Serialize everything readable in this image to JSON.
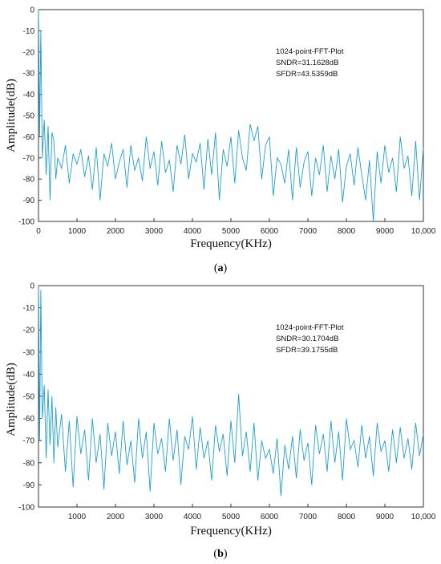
{
  "chart_data": [
    {
      "type": "line",
      "caption_letter": "a",
      "xlabel": "Frequency(KHz)",
      "ylabel": "Amplitude(dB)",
      "xlim": [
        0,
        10000
      ],
      "ylim": [
        -100,
        0
      ],
      "xticks": [
        0,
        1000,
        2000,
        3000,
        4000,
        5000,
        6000,
        7000,
        8000,
        9000,
        10000
      ],
      "xtick_labels": [
        "0",
        "1000",
        "2000",
        "3000",
        "4000",
        "5000",
        "6000",
        "7000",
        "8000",
        "9000",
        "10,000"
      ],
      "yticks": [
        0,
        -10,
        -20,
        -30,
        -40,
        -50,
        -60,
        -70,
        -80,
        -90,
        -100
      ],
      "ytick_labels": [
        "0",
        "-10",
        "-20",
        "-30",
        "-40",
        "-50",
        "-60",
        "-70",
        "-80",
        "-90",
        "-100"
      ],
      "grid": false,
      "line_color": "#1f9fd3",
      "annotations": [
        "1024-point-FFT-Plot",
        "SNDR=31.1628dB",
        "SFDR=43.5359dB"
      ],
      "series": [
        {
          "x": [
            0,
            30,
            60,
            100,
            150,
            200,
            250,
            300,
            350,
            400,
            450,
            500,
            600,
            700,
            800,
            900,
            1000,
            1100,
            1200,
            1300,
            1400,
            1500,
            1600,
            1700,
            1800,
            1900,
            2000,
            2100,
            2200,
            2300,
            2400,
            2500,
            2600,
            2700,
            2800,
            2900,
            3000,
            3100,
            3200,
            3300,
            3400,
            3500,
            3600,
            3700,
            3800,
            3900,
            4000,
            4100,
            4200,
            4300,
            4400,
            4500,
            4600,
            4700,
            4800,
            4900,
            5000,
            5100,
            5200,
            5300,
            5400,
            5500,
            5600,
            5700,
            5800,
            5900,
            6000,
            6100,
            6200,
            6300,
            6400,
            6500,
            6600,
            6700,
            6800,
            6900,
            7000,
            7100,
            7200,
            7300,
            7400,
            7500,
            7600,
            7700,
            7800,
            7900,
            8000,
            8100,
            8200,
            8300,
            8400,
            8500,
            8600,
            8700,
            8800,
            8900,
            9000,
            9100,
            9200,
            9300,
            9400,
            9500,
            9600,
            9700,
            9800,
            9900,
            10000
          ],
          "y": [
            0,
            -60,
            -10,
            -70,
            -52,
            -78,
            -55,
            -90,
            -58,
            -62,
            -80,
            -70,
            -75,
            -64,
            -82,
            -68,
            -73,
            -66,
            -79,
            -69,
            -85,
            -65,
            -90,
            -68,
            -74,
            -63,
            -80,
            -72,
            -66,
            -84,
            -64,
            -76,
            -70,
            -81,
            -60,
            -75,
            -67,
            -83,
            -62,
            -77,
            -71,
            -86,
            -64,
            -73,
            -59,
            -80,
            -68,
            -72,
            -63,
            -85,
            -61,
            -78,
            -58,
            -90,
            -66,
            -74,
            -60,
            -82,
            -57,
            -70,
            -76,
            -54,
            -62,
            -55,
            -80,
            -64,
            -60,
            -88,
            -70,
            -73,
            -82,
            -66,
            -90,
            -65,
            -84,
            -72,
            -67,
            -88,
            -70,
            -78,
            -64,
            -86,
            -69,
            -80,
            -66,
            -91,
            -74,
            -68,
            -83,
            -65,
            -78,
            -90,
            -71,
            -100,
            -67,
            -82,
            -64,
            -77,
            -70,
            -86,
            -60,
            -75,
            -69,
            -88,
            -62,
            -90,
            -65
          ]
        }
      ]
    },
    {
      "type": "line",
      "caption_letter": "b",
      "xlabel": "Frequency(KHz)",
      "ylabel": "Amplitude(dB)",
      "xlim": [
        0,
        10000
      ],
      "ylim": [
        -100,
        0
      ],
      "xticks": [
        1000,
        2000,
        3000,
        4000,
        5000,
        6000,
        7000,
        8000,
        9000,
        10000
      ],
      "xtick_labels": [
        "1000",
        "2000",
        "3000",
        "4000",
        "5000",
        "6000",
        "7000",
        "8000",
        "9000",
        "10,000"
      ],
      "yticks": [
        0,
        -10,
        -20,
        -30,
        -40,
        -50,
        -60,
        -70,
        -80,
        -90,
        -100
      ],
      "ytick_labels": [
        "0",
        "-10",
        "-20",
        "-30",
        "-40",
        "-50",
        "-60",
        "-70",
        "-80",
        "-90",
        "-100"
      ],
      "grid": false,
      "line_color": "#1f9fd3",
      "annotations": [
        "1024-point-FFT-Plot",
        "SNDR=30.1704dB",
        "SFDR=39.1755dB"
      ],
      "series": [
        {
          "x": [
            0,
            30,
            60,
            100,
            150,
            200,
            250,
            300,
            350,
            400,
            450,
            500,
            600,
            700,
            800,
            900,
            1000,
            1100,
            1200,
            1300,
            1400,
            1500,
            1600,
            1700,
            1800,
            1900,
            2000,
            2100,
            2200,
            2300,
            2400,
            2500,
            2600,
            2700,
            2800,
            2900,
            3000,
            3100,
            3200,
            3300,
            3400,
            3500,
            3600,
            3700,
            3800,
            3900,
            4000,
            4100,
            4200,
            4300,
            4400,
            4500,
            4600,
            4700,
            4800,
            4900,
            5000,
            5100,
            5200,
            5300,
            5400,
            5500,
            5600,
            5700,
            5800,
            5900,
            6000,
            6100,
            6200,
            6300,
            6400,
            6500,
            6600,
            6700,
            6800,
            6900,
            7000,
            7100,
            7200,
            7300,
            7400,
            7500,
            7600,
            7700,
            7800,
            7900,
            8000,
            8100,
            8200,
            8300,
            8400,
            8500,
            8600,
            8700,
            8800,
            8900,
            9000,
            9100,
            9200,
            9300,
            9400,
            9500,
            9600,
            9700,
            9800,
            9900,
            10000
          ],
          "y": [
            0,
            -70,
            -2,
            -60,
            -45,
            -78,
            -47,
            -72,
            -50,
            -80,
            -55,
            -73,
            -58,
            -84,
            -61,
            -91,
            -59,
            -76,
            -65,
            -88,
            -60,
            -80,
            -67,
            -92,
            -62,
            -77,
            -66,
            -85,
            -61,
            -81,
            -70,
            -89,
            -60,
            -78,
            -66,
            -93,
            -62,
            -76,
            -69,
            -84,
            -60,
            -79,
            -65,
            -90,
            -68,
            -74,
            -59,
            -83,
            -64,
            -78,
            -70,
            -88,
            -63,
            -75,
            -67,
            -86,
            -61,
            -80,
            -49,
            -77,
            -66,
            -84,
            -62,
            -88,
            -70,
            -78,
            -74,
            -85,
            -69,
            -95,
            -72,
            -83,
            -68,
            -87,
            -65,
            -79,
            -71,
            -90,
            -63,
            -76,
            -67,
            -84,
            -61,
            -80,
            -66,
            -88,
            -60,
            -74,
            -70,
            -82,
            -63,
            -78,
            -68,
            -86,
            -62,
            -75,
            -70,
            -84,
            -65,
            -80,
            -64,
            -78,
            -69,
            -83,
            -62,
            -77,
            -67
          ]
        }
      ]
    }
  ]
}
